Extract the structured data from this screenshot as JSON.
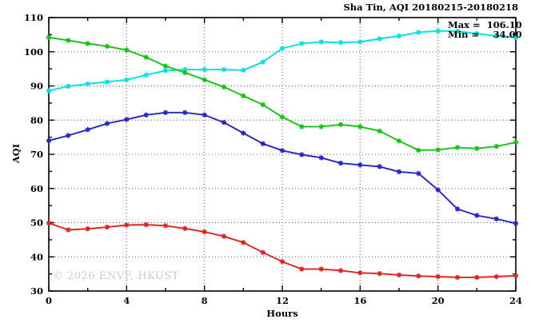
{
  "header": {
    "title": "Sha Tin, AQI 20180215-20180218"
  },
  "legend": {
    "max_label": "Max =",
    "max_value": "106.10",
    "min_label": "Min =",
    "min_value": "34.00"
  },
  "axes": {
    "x_label": "Hours",
    "y_label": "AQI"
  },
  "watermark": "© 2026 ENVF, HKUST",
  "colors": {
    "cyan_series": "#00e1e1",
    "green_series": "#12c412",
    "blue_series": "#2424c8",
    "red_series": "#e32020",
    "grid": "#606060",
    "frame": "#000000",
    "watermark": "#cbcbcb"
  },
  "chart_data": {
    "type": "line",
    "title": "Sha Tin, AQI 20180215-20180218",
    "xlabel": "Hours",
    "ylabel": "AQI",
    "xlim": [
      0,
      24
    ],
    "ylim": [
      30,
      110
    ],
    "x_ticks": [
      0,
      4,
      8,
      12,
      16,
      20,
      24
    ],
    "x_minor_ticks": [
      2,
      6,
      10,
      14,
      18,
      22
    ],
    "y_ticks": [
      30,
      40,
      50,
      60,
      70,
      80,
      90,
      100,
      110
    ],
    "y_minor_ticks": [
      35,
      45,
      55,
      65,
      75,
      85,
      95,
      105
    ],
    "grid": "dotted-at-major-ticks",
    "legend_position": "inside-top-right",
    "marker": "asterisk",
    "x": [
      0,
      1,
      2,
      3,
      4,
      5,
      6,
      7,
      8,
      9,
      10,
      11,
      12,
      13,
      14,
      15,
      16,
      17,
      18,
      19,
      20,
      21,
      22,
      23,
      24
    ],
    "series": [
      {
        "name": "cyan",
        "color": "#00e1e1",
        "values": [
          88.6,
          89.9,
          90.6,
          91.2,
          91.8,
          93.2,
          94.5,
          94.8,
          94.8,
          94.8,
          94.6,
          97.0,
          101.0,
          102.4,
          102.9,
          102.7,
          102.9,
          103.8,
          104.6,
          105.7,
          106.1,
          106.0,
          105.3,
          104.6,
          104.2
        ]
      },
      {
        "name": "green",
        "color": "#12c412",
        "values": [
          104.2,
          103.3,
          102.4,
          101.6,
          100.5,
          98.4,
          95.8,
          93.9,
          91.8,
          89.7,
          87.1,
          84.5,
          80.9,
          78.1,
          78.1,
          78.7,
          78.1,
          76.8,
          73.9,
          71.2,
          71.3,
          72.0,
          71.7,
          72.3,
          73.5
        ]
      },
      {
        "name": "blue",
        "color": "#2424c8",
        "values": [
          74.0,
          75.5,
          77.2,
          79.0,
          80.2,
          81.5,
          82.2,
          82.2,
          81.5,
          79.3,
          76.2,
          73.1,
          71.1,
          69.9,
          69.0,
          67.4,
          66.9,
          66.4,
          64.9,
          64.4,
          59.6,
          54.0,
          52.1,
          51.1,
          49.8
        ]
      },
      {
        "name": "red",
        "color": "#e32020",
        "values": [
          49.9,
          47.9,
          48.2,
          48.7,
          49.3,
          49.4,
          49.1,
          48.3,
          47.3,
          46.0,
          44.2,
          41.3,
          38.6,
          36.4,
          36.4,
          36.0,
          35.3,
          35.1,
          34.7,
          34.4,
          34.2,
          34.0,
          34.0,
          34.2,
          34.5
        ]
      }
    ],
    "annotations": {
      "max": 106.1,
      "min": 34.0
    }
  }
}
